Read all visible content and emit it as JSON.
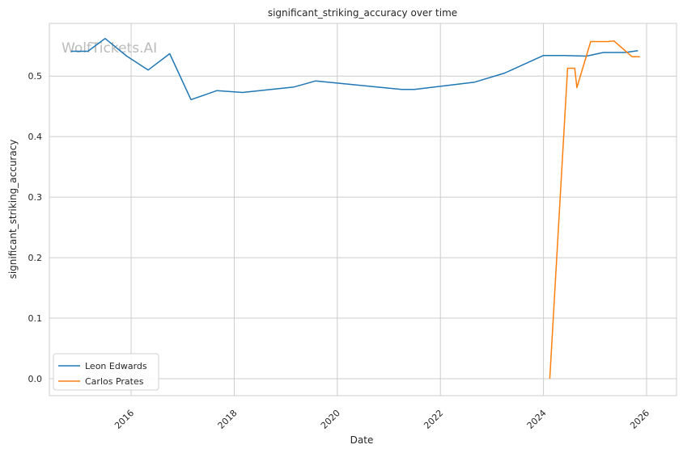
{
  "chart_data": {
    "type": "line",
    "title": "significant_striking_accuracy over time",
    "xlabel": "Date",
    "ylabel": "significant_striking_accuracy",
    "watermark": "WolfTickets.AI",
    "x_ticks": [
      "2016",
      "2018",
      "2020",
      "2022",
      "2024",
      "2026"
    ],
    "y_ticks": [
      "0.0",
      "0.1",
      "0.2",
      "0.3",
      "0.4",
      "0.5"
    ],
    "xlim": [
      "2014-06-01",
      "2026-08-01"
    ],
    "ylim": [
      -0.028,
      0.587
    ],
    "grid": true,
    "legend_position": "lower-left",
    "series": [
      {
        "name": "Leon Edwards",
        "color": "#1f77b4",
        "points": [
          [
            "2014-11-01",
            0.541
          ],
          [
            "2015-03-01",
            0.541
          ],
          [
            "2015-07-01",
            0.562
          ],
          [
            "2015-12-01",
            0.533
          ],
          [
            "2016-05-01",
            0.51
          ],
          [
            "2016-10-01",
            0.537
          ],
          [
            "2017-03-01",
            0.461
          ],
          [
            "2017-09-01",
            0.476
          ],
          [
            "2018-03-01",
            0.473
          ],
          [
            "2019-03-01",
            0.482
          ],
          [
            "2019-08-01",
            0.492
          ],
          [
            "2021-04-01",
            0.478
          ],
          [
            "2021-07-01",
            0.478
          ],
          [
            "2022-09-01",
            0.49
          ],
          [
            "2023-04-01",
            0.505
          ],
          [
            "2024-01-01",
            0.534
          ],
          [
            "2024-06-01",
            0.534
          ],
          [
            "2024-11-01",
            0.533
          ],
          [
            "2025-03-01",
            0.539
          ],
          [
            "2025-08-01",
            0.539
          ],
          [
            "2025-11-01",
            0.542
          ]
        ]
      },
      {
        "name": "Carlos Prates",
        "color": "#ff7f0e",
        "points": [
          [
            "2024-02-15",
            0.0
          ],
          [
            "2024-06-20",
            0.513
          ],
          [
            "2024-08-10",
            0.513
          ],
          [
            "2024-08-25",
            0.481
          ],
          [
            "2024-12-01",
            0.557
          ],
          [
            "2025-04-01",
            0.557
          ],
          [
            "2025-05-15",
            0.558
          ],
          [
            "2025-09-20",
            0.532
          ],
          [
            "2025-11-15",
            0.532
          ]
        ]
      }
    ]
  }
}
